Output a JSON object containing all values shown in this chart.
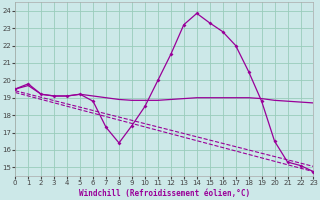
{
  "xlabel": "Windchill (Refroidissement éolien,°C)",
  "background_color": "#cce8e8",
  "grid_color": "#99ccbb",
  "line_color": "#990099",
  "xlim": [
    0,
    23
  ],
  "ylim": [
    14.5,
    24.5
  ],
  "yticks": [
    15,
    16,
    17,
    18,
    19,
    20,
    21,
    22,
    23,
    24
  ],
  "xticks": [
    0,
    1,
    2,
    3,
    4,
    5,
    6,
    7,
    8,
    9,
    10,
    11,
    12,
    13,
    14,
    15,
    16,
    17,
    18,
    19,
    20,
    21,
    22,
    23
  ],
  "curve_main_x": [
    0,
    1,
    2,
    3,
    4,
    5,
    6,
    7,
    8,
    9,
    10,
    11,
    12,
    13,
    14,
    15,
    16,
    17,
    18,
    19,
    20,
    21,
    22,
    23
  ],
  "curve_main_y": [
    19.5,
    19.8,
    19.2,
    19.1,
    19.1,
    19.2,
    18.8,
    17.3,
    16.4,
    17.4,
    18.5,
    20.0,
    21.5,
    23.2,
    23.85,
    23.3,
    22.8,
    22.0,
    20.5,
    18.8,
    16.5,
    15.3,
    15.1,
    14.75
  ],
  "curve_flat_x": [
    0,
    1,
    2,
    3,
    4,
    5,
    6,
    7,
    8,
    9,
    10,
    11,
    12,
    13,
    14,
    15,
    16,
    17,
    18,
    19,
    20,
    21,
    22,
    23
  ],
  "curve_flat_y": [
    19.5,
    19.7,
    19.2,
    19.1,
    19.1,
    19.2,
    19.1,
    19.0,
    18.9,
    18.85,
    18.85,
    18.85,
    18.9,
    18.95,
    19.0,
    19.0,
    19.0,
    19.0,
    19.0,
    18.95,
    18.85,
    18.8,
    18.75,
    18.7
  ],
  "line1_x": [
    0,
    23
  ],
  "line1_y": [
    19.4,
    15.05
  ],
  "line2_x": [
    0,
    23
  ],
  "line2_y": [
    19.3,
    14.75
  ]
}
